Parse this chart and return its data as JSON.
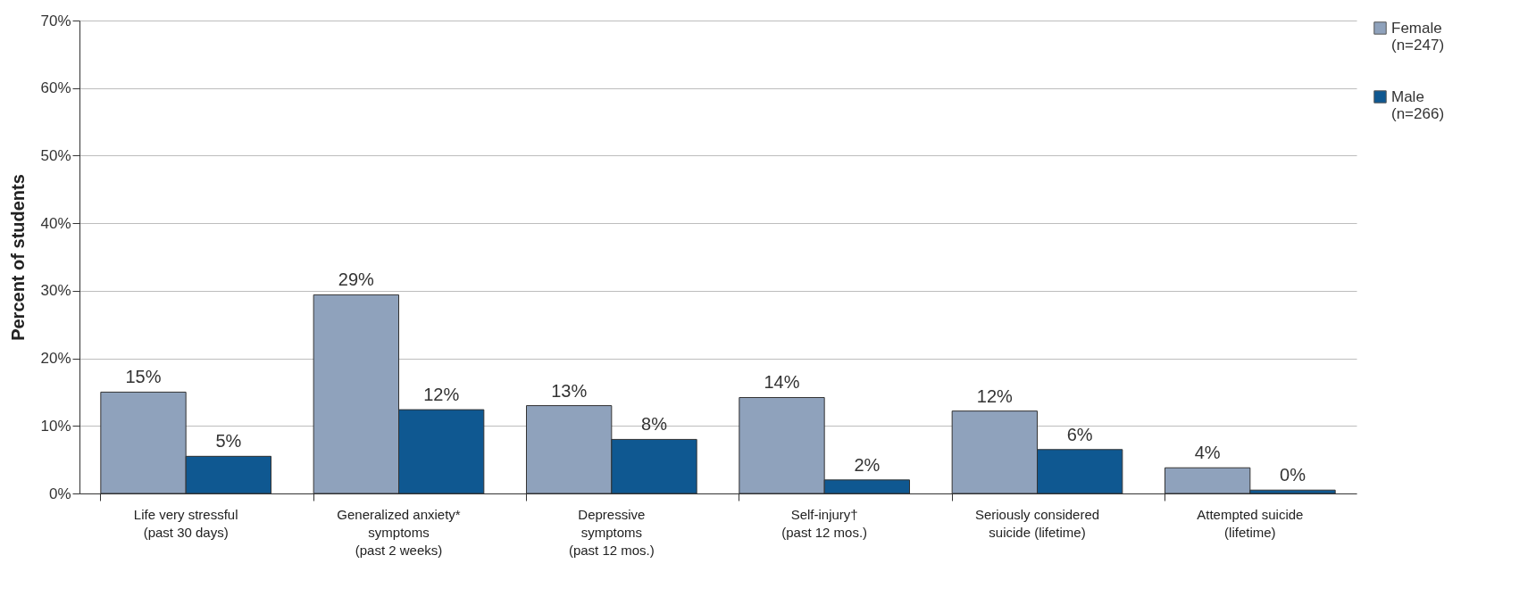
{
  "chart_data": {
    "type": "bar",
    "ylabel": "Percent of students",
    "categories": [
      "Life very stressful\n(past 30 days)",
      "Generalized anxiety*\nsymptoms\n(past 2 weeks)",
      "Depressive\nsymptoms\n(past 12 mos.)",
      "Self-injury†\n(past 12 mos.)",
      "Seriously considered\nsuicide (lifetime)",
      "Attempted suicide\n(lifetime)"
    ],
    "series": [
      {
        "name": "Female\n(n=247)",
        "color": "#8fa2bc",
        "values": [
          15,
          29.4,
          13,
          14.2,
          12.2,
          3.8
        ],
        "value_labels": [
          "15%",
          "29%",
          "13%",
          "14%",
          "12%",
          "4%"
        ]
      },
      {
        "name": "Male\n(n=266)",
        "color": "#0f5891",
        "values": [
          5.5,
          12.4,
          8,
          2,
          6.5,
          0.5
        ],
        "value_labels": [
          "5%",
          "12%",
          "8%",
          "2%",
          "6%",
          "0%"
        ]
      }
    ],
    "ylim": [
      0,
      70
    ],
    "yticks": [
      {
        "value": 0,
        "label": "0%"
      },
      {
        "value": 10,
        "label": "10%"
      },
      {
        "value": 20,
        "label": "20%"
      },
      {
        "value": 30,
        "label": "30%"
      },
      {
        "value": 40,
        "label": "40%"
      },
      {
        "value": 50,
        "label": "50%"
      },
      {
        "value": 60,
        "label": "60%"
      },
      {
        "value": 70,
        "label": "70%"
      }
    ],
    "grid": "y",
    "legend": "right"
  }
}
